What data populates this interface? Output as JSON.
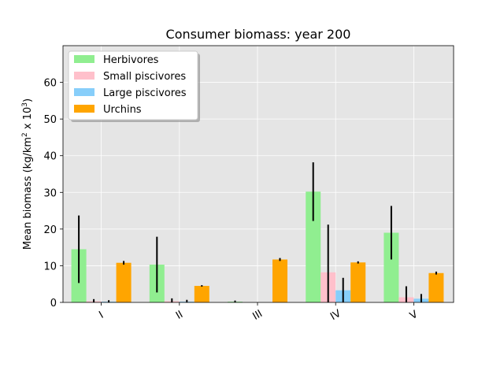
{
  "chart_data": {
    "type": "bar",
    "title": "Consumer biomass: year 200",
    "xlabel": "",
    "ylabel": {
      "prefix": "Mean biomass (kg/km",
      "sup1": "2",
      "middle": " x 10",
      "sup2": "3",
      "suffix": ")"
    },
    "categories": [
      "I",
      "II",
      "III",
      "IV",
      "V"
    ],
    "ylim": [
      0,
      70
    ],
    "yticks": [
      0,
      10,
      20,
      30,
      40,
      50,
      60
    ],
    "grid": true,
    "legend_position": "top-left",
    "series": [
      {
        "name": "Herbivores",
        "color": "#90ee90",
        "values": [
          14.5,
          10.3,
          0.2,
          30.2,
          19.0
        ],
        "errors": [
          9.2,
          7.6,
          0.3,
          8.0,
          7.3
        ]
      },
      {
        "name": "Small piscivores",
        "color": "#ffc0cb",
        "values": [
          0.3,
          0.3,
          0.0,
          8.2,
          1.4
        ],
        "errors": [
          0.6,
          0.8,
          0.0,
          13.0,
          3.0
        ]
      },
      {
        "name": "Large piscivores",
        "color": "#87cefa",
        "values": [
          0.2,
          0.2,
          0.0,
          3.3,
          1.0
        ],
        "errors": [
          0.4,
          0.5,
          0.0,
          3.4,
          1.3
        ]
      },
      {
        "name": "Urchins",
        "color": "#ffa500",
        "values": [
          10.8,
          4.5,
          11.7,
          10.9,
          8.0
        ],
        "errors": [
          0.5,
          0.2,
          0.4,
          0.3,
          0.4
        ]
      }
    ]
  }
}
